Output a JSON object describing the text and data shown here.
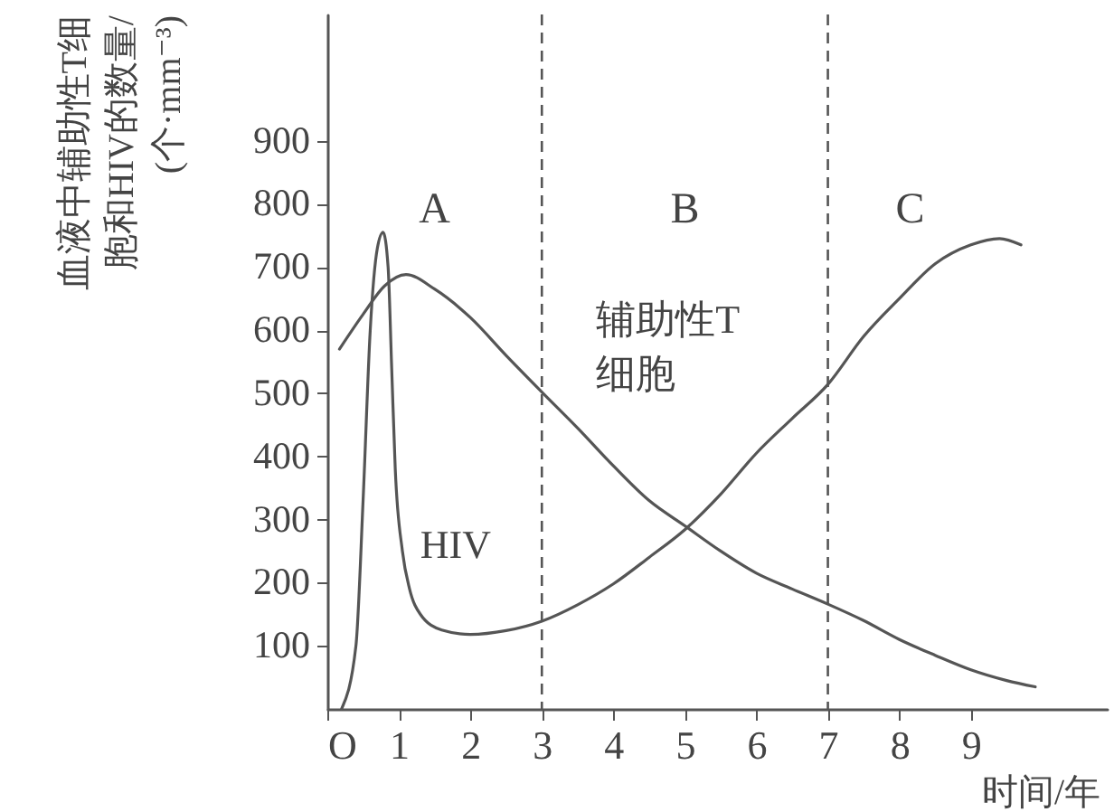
{
  "chart_data": {
    "type": "line",
    "xlabel": "时间/年",
    "ylabel": "血液中辅助性T细胞和HIV的数量/(个·mm⁻³)",
    "xlim": [
      0,
      10.9
    ],
    "ylim": [
      0,
      1100
    ],
    "xticks": [
      {
        "value": 0,
        "label": "O"
      },
      1,
      2,
      3,
      4,
      5,
      6,
      7,
      8,
      9
    ],
    "yticks": [
      100,
      200,
      300,
      400,
      500,
      600,
      700,
      800,
      900
    ],
    "grid": false,
    "marker": "none",
    "line_style": "solid",
    "series": [
      {
        "name": "辅助性T细胞",
        "color": "#555555",
        "x": [
          0.17,
          0.5,
          0.8,
          1.1,
          1.5,
          2,
          2.5,
          3,
          3.5,
          4,
          4.5,
          5,
          5.5,
          6,
          6.5,
          7,
          7.5,
          8,
          8.5,
          9,
          9.5,
          9.9
        ],
        "values": [
          570,
          625,
          670,
          688,
          665,
          620,
          560,
          502,
          445,
          385,
          330,
          290,
          250,
          215,
          190,
          166,
          140,
          110,
          85,
          62,
          45,
          35
        ]
      },
      {
        "name": "HIV",
        "color": "#555555",
        "x": [
          0.2,
          0.4,
          0.5,
          0.6,
          0.7,
          0.78,
          0.85,
          0.9,
          0.95,
          1.05,
          1.15,
          1.3,
          1.6,
          2,
          2.5,
          3,
          3.5,
          4,
          4.5,
          5,
          5.5,
          6,
          6.5,
          7,
          7.5,
          8,
          8.5,
          9,
          9.4,
          9.7
        ],
        "values": [
          0,
          100,
          330,
          600,
          730,
          755,
          700,
          540,
          380,
          250,
          190,
          150,
          125,
          118,
          124,
          139,
          165,
          198,
          240,
          284,
          340,
          405,
          460,
          514,
          590,
          650,
          705,
          735,
          745,
          735
        ]
      }
    ],
    "ref_lines": [
      {
        "axis": "x",
        "value": 3,
        "line_style": "dashed"
      },
      {
        "axis": "x",
        "value": 7,
        "line_style": "dashed"
      }
    ],
    "annotations": [
      "A",
      "B",
      "C"
    ]
  }
}
